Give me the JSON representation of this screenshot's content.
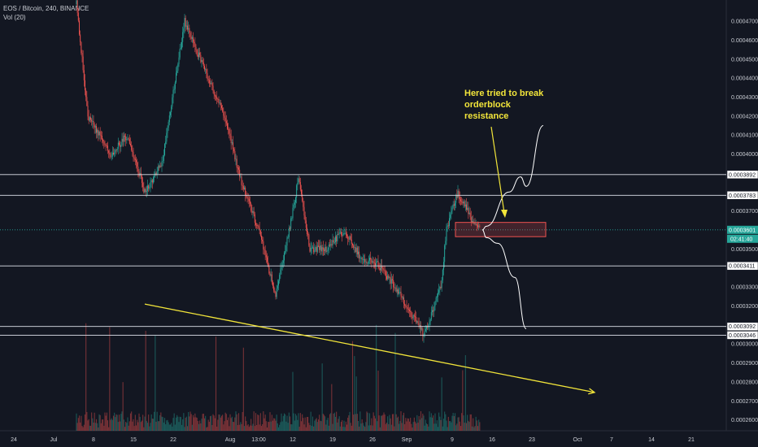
{
  "header": {
    "symbol": "EOS / Bitcoin, 240, BINANCE",
    "volume": "Vol (20)"
  },
  "annotation": {
    "lines": [
      "Here tried to break",
      "orderblock",
      "resistance"
    ]
  },
  "countdown": "02:41:40",
  "colors": {
    "background": "#131722",
    "up": "#26a69a",
    "down": "#ef5350",
    "trendline": "#f2e53a",
    "level": "#e0e3eb",
    "box": "#ef5350"
  },
  "chart_data": {
    "type": "candlestick",
    "symbol": "EOS / Bitcoin",
    "interval": "240",
    "exchange": "BINANCE",
    "ylim": [
      0.000256,
      0.000479
    ],
    "price_ticks": [
      "0.0004700",
      "0.0004600",
      "0.0004500",
      "0.0004400",
      "0.0004300",
      "0.0004200",
      "0.0004100",
      "0.0004000",
      "0.0003700",
      "0.0003500",
      "0.0003300",
      "0.0003200",
      "0.0003000",
      "0.0002900",
      "0.0002800",
      "0.0002700",
      "0.0002600"
    ],
    "x_ticks": [
      "24",
      "Jul",
      "8",
      "15",
      "22",
      "Aug",
      "13:00",
      "12",
      "19",
      "26",
      "Sep",
      "9",
      "16",
      "23",
      "Oct",
      "7",
      "14",
      "21"
    ],
    "levels": [
      {
        "label": "0.0003892",
        "price": 0.0003892
      },
      {
        "label": "0.0003783",
        "price": 0.0003783
      },
      {
        "label": "0.0003411",
        "price": 0.0003411
      },
      {
        "label": "0.0003092",
        "price": 0.0003092
      },
      {
        "label": "0.0003046",
        "price": 0.0003046
      }
    ],
    "last_price": {
      "label": "0.0003601",
      "price": 0.0003601
    },
    "orderblock": {
      "top": 0.000364,
      "bottom": 0.0003565
    },
    "price_path": [
      {
        "date": "2019-07-05",
        "price": 0.000479
      },
      {
        "date": "2019-07-07",
        "price": 0.00042
      },
      {
        "date": "2019-07-11",
        "price": 0.0004
      },
      {
        "date": "2019-07-14",
        "price": 0.00041
      },
      {
        "date": "2019-07-17",
        "price": 0.00038
      },
      {
        "date": "2019-07-20",
        "price": 0.000395
      },
      {
        "date": "2019-07-24",
        "price": 0.00047
      },
      {
        "date": "2019-07-27",
        "price": 0.000448
      },
      {
        "date": "2019-07-31",
        "price": 0.00042
      },
      {
        "date": "2019-08-03",
        "price": 0.000385
      },
      {
        "date": "2019-08-06",
        "price": 0.00036
      },
      {
        "date": "2019-08-09",
        "price": 0.000325
      },
      {
        "date": "2019-08-12",
        "price": 0.00037
      },
      {
        "date": "2019-08-13",
        "price": 0.000388
      },
      {
        "date": "2019-08-15",
        "price": 0.00035
      },
      {
        "date": "2019-08-18",
        "price": 0.00035
      },
      {
        "date": "2019-08-21",
        "price": 0.00036
      },
      {
        "date": "2019-08-24",
        "price": 0.000345
      },
      {
        "date": "2019-08-27",
        "price": 0.000342
      },
      {
        "date": "2019-08-30",
        "price": 0.00033
      },
      {
        "date": "2019-09-02",
        "price": 0.000315
      },
      {
        "date": "2019-09-04",
        "price": 0.000305
      },
      {
        "date": "2019-09-07",
        "price": 0.00033
      },
      {
        "date": "2019-09-08",
        "price": 0.00036
      },
      {
        "date": "2019-09-10",
        "price": 0.00038
      },
      {
        "date": "2019-09-13",
        "price": 0.000362
      },
      {
        "date": "2019-09-14",
        "price": 0.0003601
      }
    ],
    "projections": [
      {
        "name": "bullish",
        "points": [
          {
            "date": "2019-09-15",
            "price": 0.000362
          },
          {
            "date": "2019-09-19",
            "price": 0.00038
          },
          {
            "date": "2019-09-21",
            "price": 0.000388
          },
          {
            "date": "2019-09-22",
            "price": 0.000383
          },
          {
            "date": "2019-09-25",
            "price": 0.000415
          }
        ]
      },
      {
        "name": "bearish",
        "points": [
          {
            "date": "2019-09-15",
            "price": 0.000356
          },
          {
            "date": "2019-09-17",
            "price": 0.000353
          },
          {
            "date": "2019-09-20",
            "price": 0.000335
          },
          {
            "date": "2019-09-22",
            "price": 0.000308
          }
        ]
      }
    ],
    "trendline": {
      "start": {
        "date": "2019-07-17",
        "price": 0.000321
      },
      "end": {
        "date": "2019-10-04",
        "price": 0.0002745
      }
    }
  }
}
